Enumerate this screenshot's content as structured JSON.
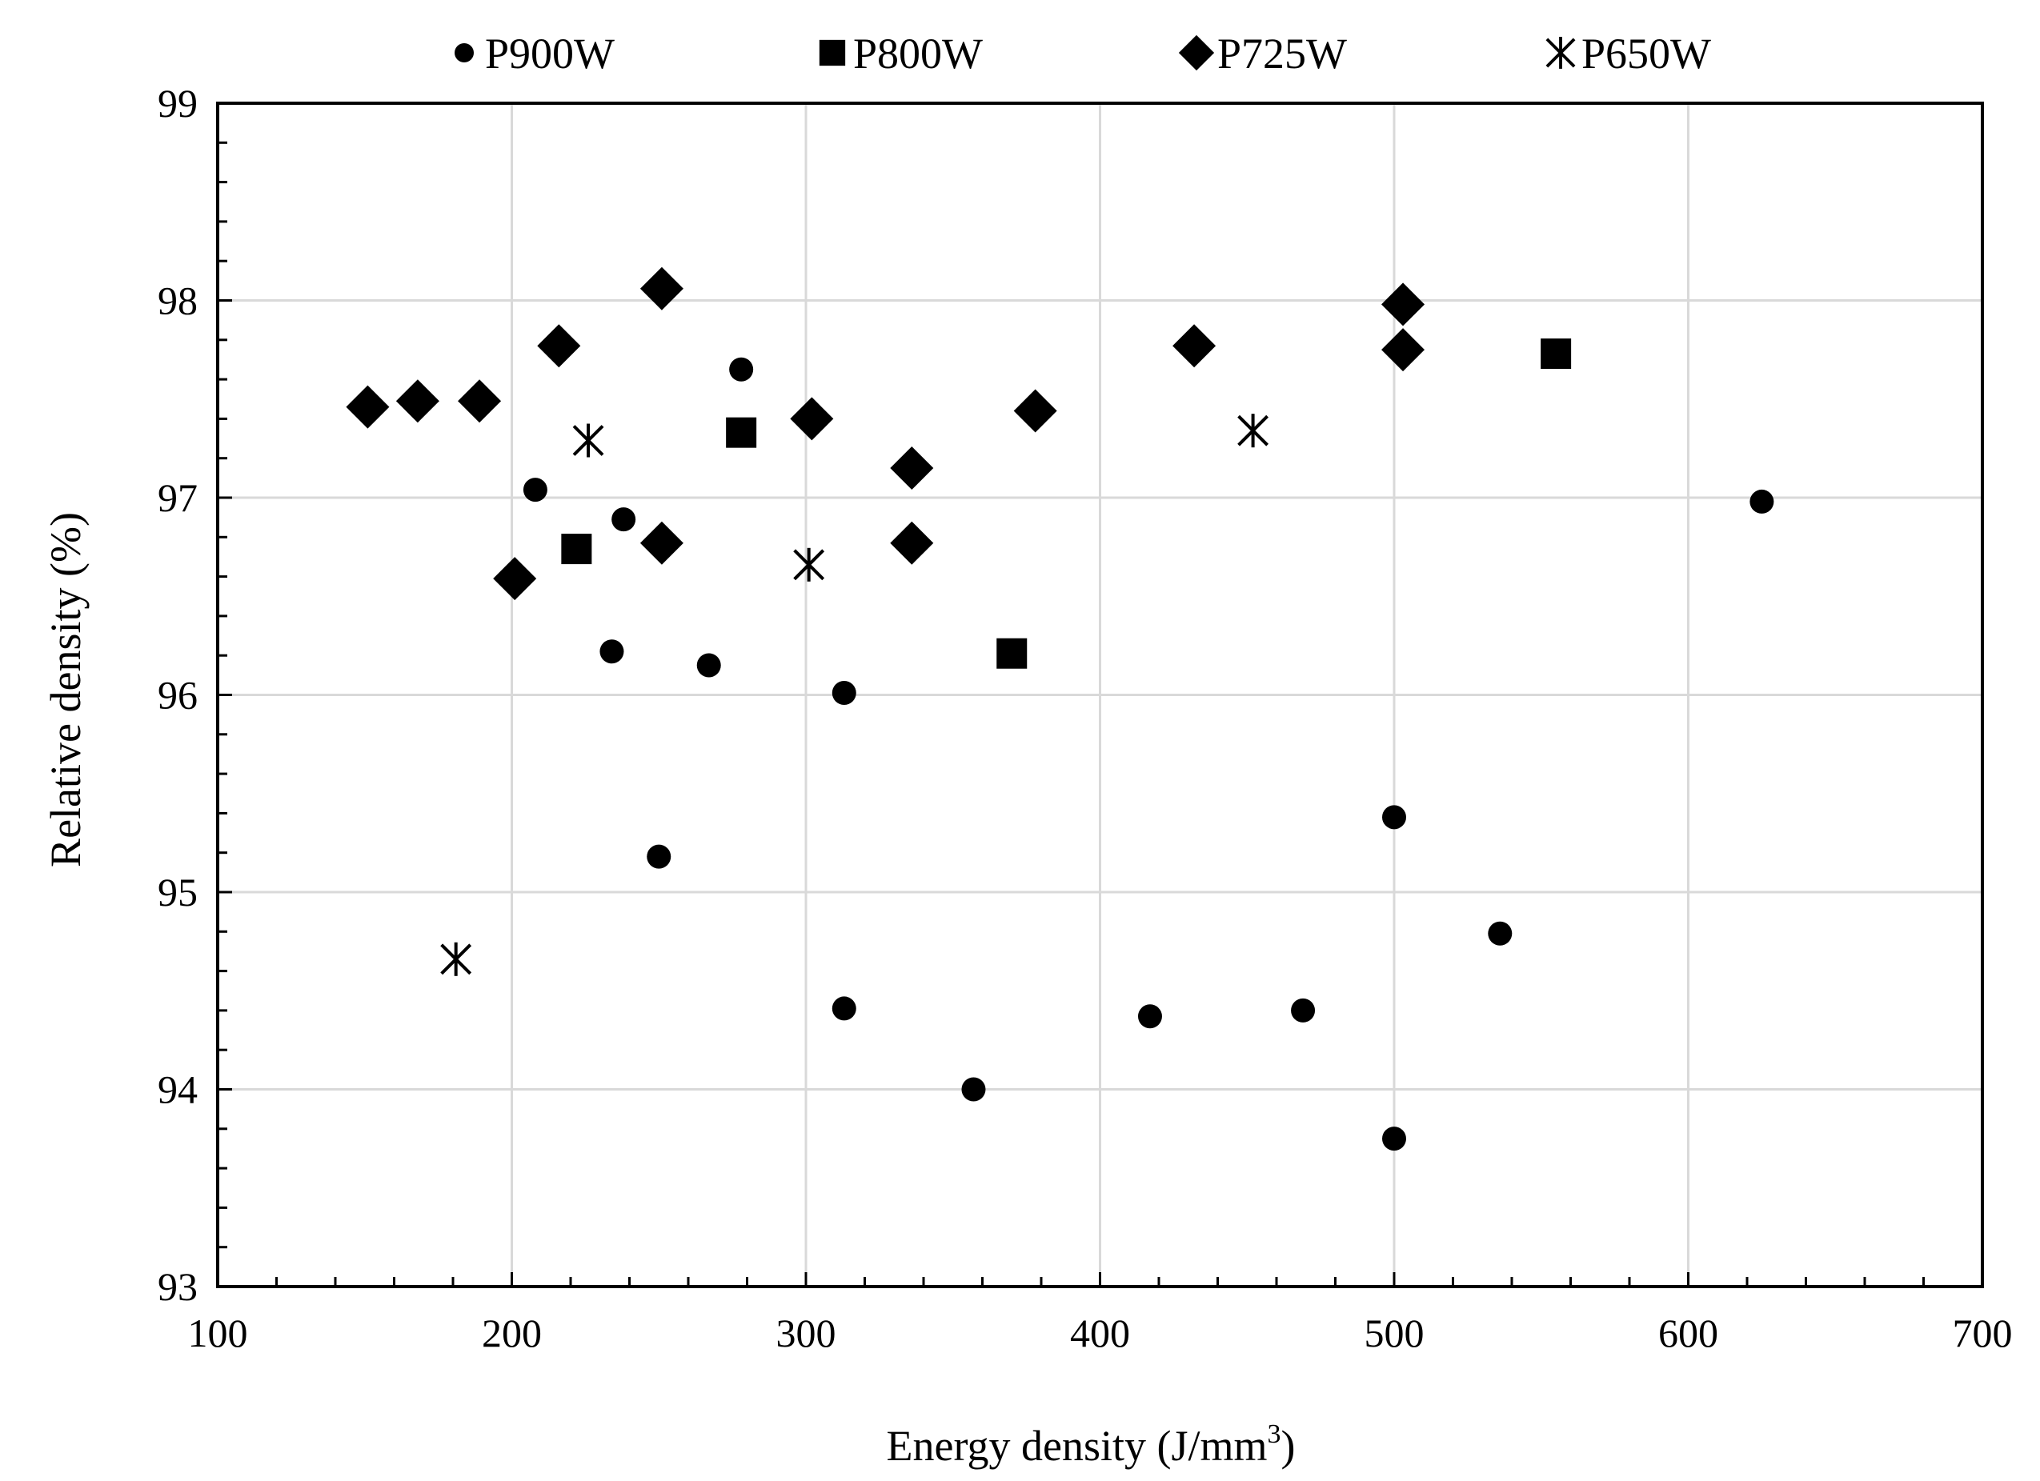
{
  "chart_data": {
    "type": "scatter",
    "title": "",
    "xlabel": "Energy density (J/mm",
    "xlabel_sup": "3",
    "xlabel_end": ")",
    "ylabel": "Relative density (%)",
    "xlim": [
      100,
      700
    ],
    "ylim": [
      93,
      99
    ],
    "xticks": [
      100,
      200,
      300,
      400,
      500,
      600,
      700
    ],
    "yticks": [
      93,
      94,
      95,
      96,
      97,
      98,
      99
    ],
    "x_minor_step": 20,
    "y_minor_step": 0.2,
    "grid": true,
    "legend_position": "top",
    "series": [
      {
        "name": "P900W",
        "marker": "circle",
        "color": "#000000",
        "points": [
          [
            208,
            97.04
          ],
          [
            238,
            96.89
          ],
          [
            234,
            96.22
          ],
          [
            250,
            95.18
          ],
          [
            267,
            96.15
          ],
          [
            278,
            97.65
          ],
          [
            313,
            96.01
          ],
          [
            313,
            94.41
          ],
          [
            357,
            94.0
          ],
          [
            417,
            94.37
          ],
          [
            469,
            94.4
          ],
          [
            500,
            95.38
          ],
          [
            500,
            93.75
          ],
          [
            536,
            94.79
          ],
          [
            625,
            96.98
          ]
        ]
      },
      {
        "name": "P800W",
        "marker": "square",
        "color": "#000000",
        "points": [
          [
            222,
            96.74
          ],
          [
            278,
            97.33
          ],
          [
            370,
            96.21
          ],
          [
            555,
            97.73
          ]
        ]
      },
      {
        "name": "P725W",
        "marker": "diamond",
        "color": "#000000",
        "points": [
          [
            151,
            97.46
          ],
          [
            168,
            97.49
          ],
          [
            189,
            97.49
          ],
          [
            201,
            96.59
          ],
          [
            216,
            97.77
          ],
          [
            251,
            98.06
          ],
          [
            251,
            96.77
          ],
          [
            302,
            97.4
          ],
          [
            336,
            97.15
          ],
          [
            336,
            96.77
          ],
          [
            378,
            97.44
          ],
          [
            432,
            97.77
          ],
          [
            503,
            97.98
          ],
          [
            503,
            97.75
          ]
        ]
      },
      {
        "name": "P650W",
        "marker": "asterisk",
        "color": "#000000",
        "points": [
          [
            181,
            94.66
          ],
          [
            226,
            97.29
          ],
          [
            301,
            96.66
          ],
          [
            452,
            97.34
          ]
        ]
      }
    ]
  }
}
